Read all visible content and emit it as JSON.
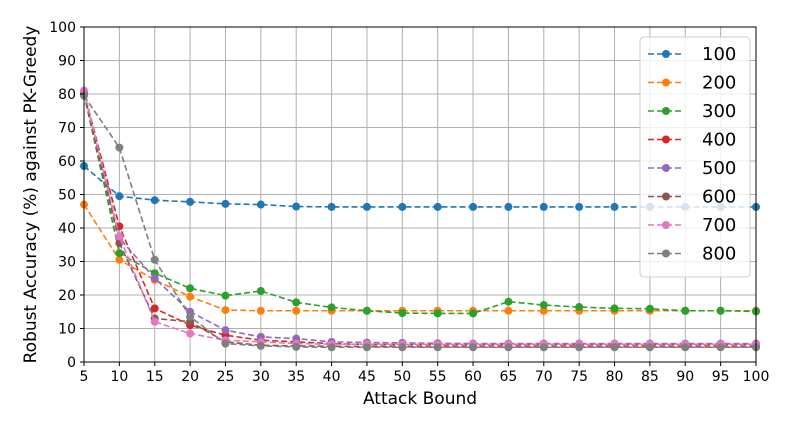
{
  "chart_data": {
    "type": "line",
    "xlabel": "Attack Bound",
    "ylabel": "Robust Accuracy (%) against PK-Greedy",
    "xlim": [
      5,
      100
    ],
    "ylim": [
      0,
      100
    ],
    "xticks": [
      5,
      10,
      15,
      20,
      25,
      30,
      35,
      40,
      45,
      50,
      55,
      60,
      65,
      70,
      75,
      80,
      85,
      90,
      95,
      100
    ],
    "yticks": [
      0,
      10,
      20,
      30,
      40,
      50,
      60,
      70,
      80,
      90,
      100
    ],
    "grid": true,
    "legend_position": "top-right",
    "x": [
      5,
      10,
      15,
      20,
      25,
      30,
      35,
      40,
      45,
      50,
      55,
      60,
      65,
      70,
      75,
      80,
      85,
      90,
      95,
      100
    ],
    "series": [
      {
        "name": "100",
        "color": "#1f77b4",
        "values": [
          58.5,
          49.5,
          48.3,
          47.8,
          47.2,
          47.0,
          46.4,
          46.3,
          46.3,
          46.3,
          46.3,
          46.3,
          46.3,
          46.3,
          46.3,
          46.3,
          46.3,
          46.3,
          46.3,
          46.3
        ]
      },
      {
        "name": "200",
        "color": "#ff7f0e",
        "values": [
          47.0,
          30.5,
          24.5,
          19.5,
          15.5,
          15.3,
          15.3,
          15.3,
          15.3,
          15.3,
          15.3,
          15.3,
          15.3,
          15.3,
          15.3,
          15.3,
          15.3,
          15.3,
          15.3,
          15.3
        ]
      },
      {
        "name": "300",
        "color": "#2ca02c",
        "values": [
          80.0,
          32.5,
          26.5,
          22.0,
          19.8,
          21.2,
          17.8,
          16.3,
          15.3,
          14.6,
          14.5,
          14.5,
          18.0,
          17.0,
          16.4,
          16.0,
          15.9,
          15.3,
          15.3,
          15.1
        ]
      },
      {
        "name": "400",
        "color": "#d62728",
        "values": [
          80.5,
          40.5,
          16.0,
          11.0,
          8.0,
          6.5,
          6.0,
          5.5,
          5.2,
          5.2,
          5.1,
          5.1,
          5.1,
          5.1,
          5.1,
          5.1,
          5.1,
          5.1,
          5.1,
          5.1
        ]
      },
      {
        "name": "500",
        "color": "#9467bd",
        "values": [
          80.5,
          37.0,
          25.0,
          15.0,
          9.5,
          7.5,
          7.0,
          6.0,
          5.8,
          5.7,
          5.6,
          5.5,
          5.5,
          5.5,
          5.5,
          5.5,
          5.5,
          5.5,
          5.5,
          5.5
        ]
      },
      {
        "name": "600",
        "color": "#8c564b",
        "values": [
          80.0,
          35.5,
          13.0,
          12.0,
          6.0,
          5.0,
          4.8,
          4.7,
          4.6,
          4.6,
          4.5,
          4.5,
          4.5,
          4.5,
          4.5,
          4.5,
          4.5,
          4.5,
          4.5,
          4.5
        ]
      },
      {
        "name": "700",
        "color": "#e377c2",
        "values": [
          81.0,
          37.5,
          12.0,
          8.5,
          6.5,
          6.0,
          5.5,
          5.3,
          5.3,
          5.3,
          5.3,
          5.3,
          5.3,
          5.3,
          5.3,
          5.3,
          5.3,
          5.3,
          5.3,
          5.3
        ]
      },
      {
        "name": "800",
        "color": "#7f7f7f",
        "values": [
          79.5,
          64.0,
          30.5,
          13.5,
          5.5,
          4.8,
          4.5,
          4.4,
          4.4,
          4.4,
          4.4,
          4.4,
          4.4,
          4.4,
          4.4,
          4.4,
          4.4,
          4.4,
          4.4,
          4.4
        ]
      }
    ]
  }
}
